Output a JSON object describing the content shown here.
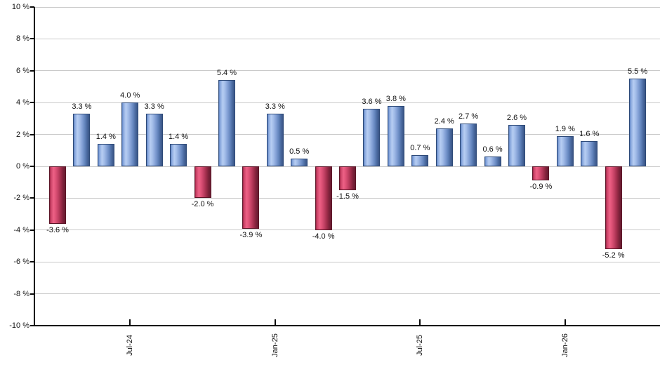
{
  "chart_data": {
    "type": "bar",
    "title": "",
    "xlabel": "",
    "ylabel": "",
    "ylim": [
      -10,
      10
    ],
    "grid": true,
    "legend": null,
    "y_tick_labels": [
      "10 %",
      "8 %",
      "6 %",
      "4 %",
      "2 %",
      "0 %",
      "-2 %",
      "-4 %",
      "-6 %",
      "-8 %",
      "-10 %"
    ],
    "y_tick_values": [
      10,
      8,
      6,
      4,
      2,
      0,
      -2,
      -4,
      -6,
      -8,
      -10
    ],
    "values": [
      -3.6,
      3.3,
      1.4,
      4.0,
      3.3,
      1.4,
      -2.0,
      5.4,
      -3.9,
      3.3,
      0.5,
      -4.0,
      -1.5,
      3.6,
      3.8,
      0.7,
      2.4,
      2.7,
      0.6,
      2.6,
      -0.9,
      1.9,
      1.6,
      -5.2,
      5.5
    ],
    "bar_labels": [
      "-3.6 %",
      "3.3 %",
      "1.4 %",
      "4.0 %",
      "3.3 %",
      "1.4 %",
      "-2.0 %",
      "5.4 %",
      "-3.9 %",
      "3.3 %",
      "0.5 %",
      "-4.0 %",
      "-1.5 %",
      "3.6 %",
      "3.8 %",
      "0.7 %",
      "2.4 %",
      "2.7 %",
      "0.6 %",
      "2.6 %",
      "-0.9 %",
      "1.9 %",
      "1.6 %",
      "-5.2 %",
      "5.5 %"
    ],
    "x_ticks": [
      {
        "index": 3,
        "label": "Jul-24"
      },
      {
        "index": 9,
        "label": "Jan-25"
      },
      {
        "index": 15,
        "label": "Jul-25"
      },
      {
        "index": 21,
        "label": "Jan-26"
      }
    ],
    "colors": {
      "positive_bar": "#7da3da",
      "positive_bar_light": "#b7cdf2",
      "positive_bar_dark": "#3a5585",
      "negative_bar": "#cf4a70",
      "negative_bar_light": "#ee6186",
      "negative_bar_dark": "#671c31",
      "gridline": "#cacaca",
      "axis": "#0a0a0a",
      "text": "#111111"
    }
  }
}
